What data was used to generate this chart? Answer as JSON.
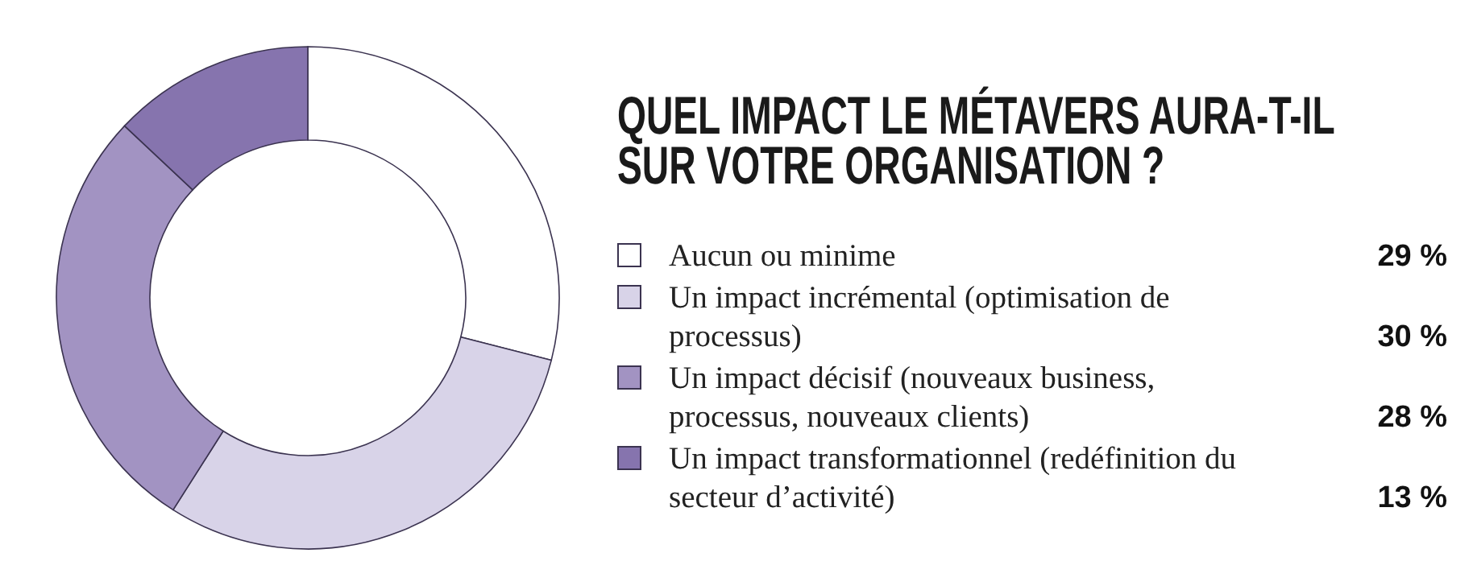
{
  "chart_data": {
    "type": "donut",
    "title": "QUEL IMPACT LE MÉTAVERS AURA-T-IL SUR VOTRE ORGANISATION ?",
    "categories": [
      "Aucun ou minime",
      "Un impact incrémental (optimisation de processus)",
      "Un impact décisif (nouveaux business, processus, nouveaux clients)",
      "Un impact transformationnel (redéfinition du secteur d’activité)"
    ],
    "values": [
      29,
      30,
      28,
      13
    ],
    "colors": [
      "#ffffff",
      "#d8d3e8",
      "#a293c2",
      "#8674ae"
    ],
    "value_labels": [
      "29 %",
      "30 %",
      "28 %",
      "13 %"
    ],
    "legend": "right"
  }
}
